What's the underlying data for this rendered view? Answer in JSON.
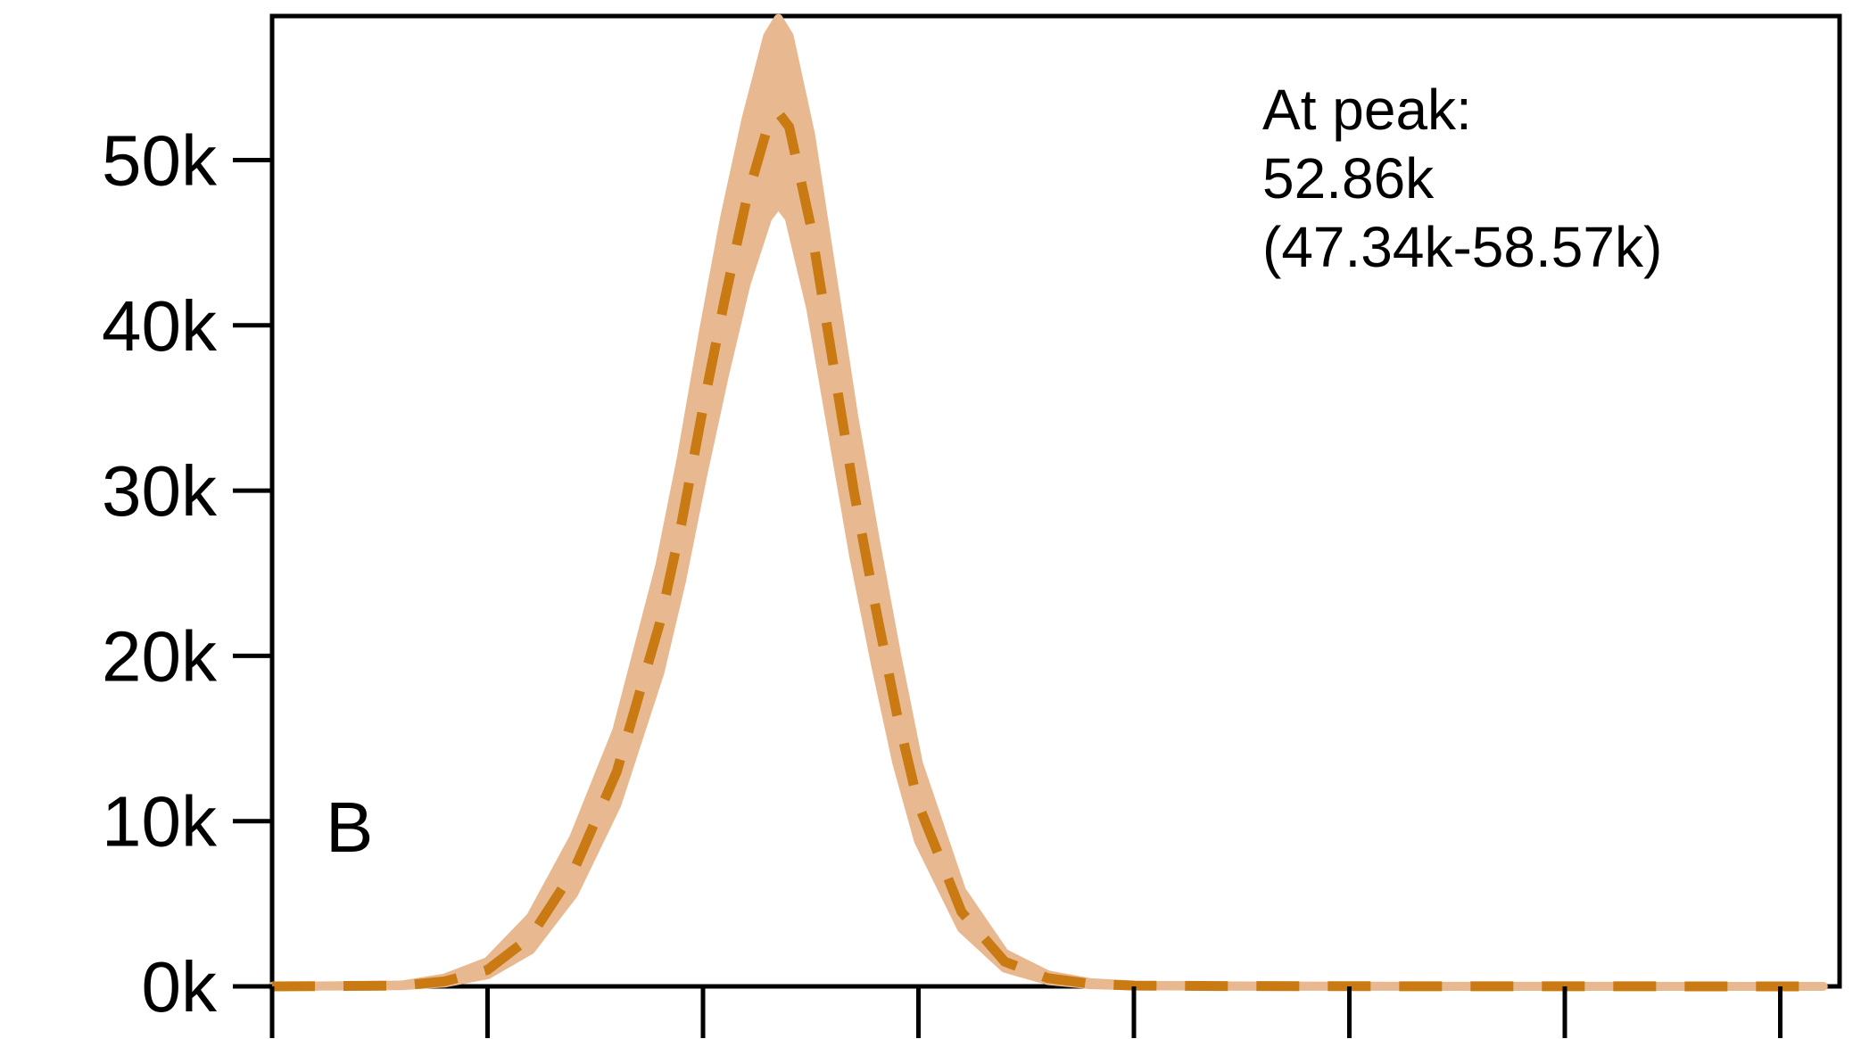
{
  "chart_data": {
    "type": "line",
    "title": "",
    "xlabel": "",
    "ylabel": "",
    "panel_label": "B",
    "ylim": [
      0,
      57000
    ],
    "xlim": [
      0,
      72
    ],
    "y_ticks": [
      {
        "value": 0,
        "label": "0k"
      },
      {
        "value": 10000,
        "label": "10k"
      },
      {
        "value": 20000,
        "label": "20k"
      },
      {
        "value": 30000,
        "label": "30k"
      },
      {
        "value": 40000,
        "label": "40k"
      },
      {
        "value": 50000,
        "label": "50k"
      }
    ],
    "x_ticks": [
      0,
      10,
      20,
      30,
      40,
      50,
      60,
      70
    ],
    "annotation": {
      "line1": "At peak:",
      "line2": "52.86k",
      "line3": "(47.34k-58.57k)"
    },
    "grid": false,
    "colors": {
      "line": "#c97a12",
      "band": "#e8b990",
      "axis": "#000000"
    },
    "series": [
      {
        "style": "dashed",
        "x": [
          0,
          6,
          8,
          10,
          12,
          14,
          16,
          18,
          19,
          20,
          21,
          22,
          23,
          23.5,
          24,
          25,
          26,
          27,
          28,
          29,
          30,
          32,
          34,
          36,
          38,
          40,
          44,
          50,
          60,
          72
        ],
        "y": [
          0,
          50,
          300,
          1000,
          3000,
          7000,
          13000,
          22000,
          28000,
          35000,
          41500,
          47500,
          52000,
          52860,
          52000,
          46000,
          38000,
          30000,
          23000,
          16500,
          11000,
          4500,
          1500,
          500,
          150,
          50,
          20,
          10,
          5,
          0
        ],
        "lower": [
          0,
          40,
          200,
          700,
          2200,
          5600,
          11000,
          19000,
          24500,
          31000,
          37000,
          42500,
          46500,
          47340,
          46500,
          41000,
          33500,
          26000,
          19500,
          13500,
          8800,
          3500,
          1100,
          350,
          100,
          30,
          10,
          5,
          2,
          0
        ],
        "upper": [
          0,
          80,
          500,
          1500,
          4200,
          9000,
          15500,
          25500,
          32000,
          39500,
          46500,
          52500,
          57500,
          58570,
          57500,
          51500,
          43000,
          34500,
          27000,
          20000,
          13500,
          5800,
          2000,
          700,
          220,
          80,
          30,
          15,
          8,
          0
        ]
      }
    ]
  }
}
